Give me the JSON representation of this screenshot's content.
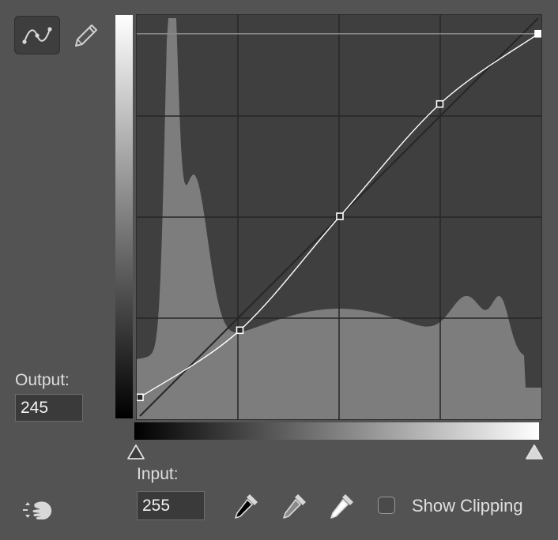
{
  "tools": {
    "curve_tool_icon": "curve-point-icon",
    "pencil_tool_icon": "pencil-icon",
    "auto_icon": "targeted-adjustment-icon"
  },
  "output": {
    "label": "Output:",
    "value": "245"
  },
  "input": {
    "label": "Input:",
    "value": "255"
  },
  "eyedroppers": [
    {
      "name": "black-point",
      "icon": "eyedropper-black-icon"
    },
    {
      "name": "gray-point",
      "icon": "eyedropper-gray-icon"
    },
    {
      "name": "white-point",
      "icon": "eyedropper-white-icon"
    }
  ],
  "show_clipping": {
    "label": "Show Clipping",
    "checked": false
  },
  "curve": {
    "input_range": [
      0,
      255
    ],
    "output_range": [
      0,
      255
    ],
    "control_points": [
      {
        "input": 0,
        "output": 12
      },
      {
        "input": 64,
        "output": 55
      },
      {
        "input": 128,
        "output": 128
      },
      {
        "input": 192,
        "output": 200
      },
      {
        "input": 255,
        "output": 245
      }
    ],
    "selected_point_index": 4,
    "grid_divisions": 4
  },
  "colors": {
    "panel_bg": "#535353",
    "graph_bg": "#3f3f3f",
    "histogram": "#7d7d7d",
    "grid": "#262626",
    "curve": "#ffffff"
  }
}
